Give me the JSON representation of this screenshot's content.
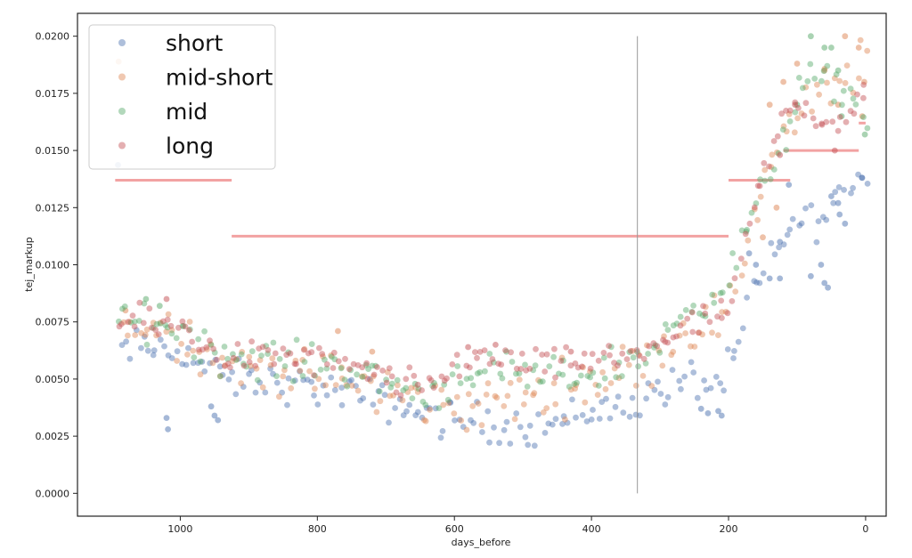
{
  "chart_data": {
    "type": "scatter",
    "xlabel": "days_before",
    "ylabel": "tej_markup",
    "xlim": [
      1150,
      -30
    ],
    "ylim": [
      -0.001,
      0.021
    ],
    "x_inverted": true,
    "xticks": [
      1000,
      800,
      600,
      400,
      200,
      0
    ],
    "yticks": [
      0.0,
      0.0025,
      0.005,
      0.0075,
      0.01,
      0.0125,
      0.015,
      0.0175,
      0.02
    ],
    "ytick_labels": [
      "0.0000",
      "0.0025",
      "0.0050",
      "0.0075",
      "0.0100",
      "0.0125",
      "0.0150",
      "0.0175",
      "0.0200"
    ],
    "legend_position": "upper-left",
    "grid": false,
    "vertical_line": {
      "x": 333,
      "y_from": 0.0,
      "y_to": 0.02,
      "color": "#999999"
    },
    "reference_lines": [
      {
        "x_from": 1095,
        "x_to": 925,
        "y": 0.0137
      },
      {
        "x_from": 925,
        "x_to": 200,
        "y": 0.01125
      },
      {
        "x_from": 200,
        "x_to": 110,
        "y": 0.0137
      },
      {
        "x_from": 120,
        "x_to": 10,
        "y": 0.015
      },
      {
        "x_from": 10,
        "x_to": 0,
        "y": 0.0162
      }
    ],
    "reference_color": "#f2a2a2",
    "series": [
      {
        "name": "short",
        "color": "#4c72b0",
        "curve": [
          [
            1090,
            0.0063
          ],
          [
            1000,
            0.0063
          ],
          [
            940,
            0.005
          ],
          [
            840,
            0.0048
          ],
          [
            760,
            0.0044
          ],
          [
            700,
            0.004
          ],
          [
            620,
            0.0033
          ],
          [
            560,
            0.0031
          ],
          [
            500,
            0.0029
          ],
          [
            460,
            0.003
          ],
          [
            400,
            0.0036
          ],
          [
            340,
            0.0039
          ],
          [
            300,
            0.0045
          ],
          [
            260,
            0.005
          ],
          [
            210,
            0.0047
          ],
          [
            190,
            0.006
          ],
          [
            170,
            0.0085
          ],
          [
            150,
            0.0095
          ],
          [
            130,
            0.0105
          ],
          [
            100,
            0.012
          ],
          [
            60,
            0.012
          ],
          [
            10,
            0.014
          ],
          [
            0,
            0.014
          ]
        ],
        "spread": 0.0006,
        "extra_points": [
          [
            1020,
            0.0033
          ],
          [
            1018,
            0.0028
          ],
          [
            955,
            0.0038
          ],
          [
            950,
            0.0034
          ],
          [
            945,
            0.0032
          ],
          [
            240,
            0.0037
          ],
          [
            230,
            0.0035
          ],
          [
            215,
            0.0036
          ],
          [
            210,
            0.0034
          ],
          [
            170,
            0.0105
          ],
          [
            160,
            0.01
          ],
          [
            140,
            0.0094
          ],
          [
            125,
            0.0094
          ],
          [
            80,
            0.0095
          ],
          [
            65,
            0.01
          ],
          [
            60,
            0.0092
          ],
          [
            55,
            0.009
          ],
          [
            125,
            0.011
          ],
          [
            112,
            0.0135
          ],
          [
            50,
            0.013
          ],
          [
            40,
            0.0127
          ],
          [
            38,
            0.0122
          ],
          [
            30,
            0.0118
          ],
          [
            5,
            0.0138
          ]
        ]
      },
      {
        "name": "mid-short",
        "color": "#dd8452",
        "curve": [
          [
            1090,
            0.0073
          ],
          [
            1000,
            0.0072
          ],
          [
            940,
            0.0057
          ],
          [
            860,
            0.0054
          ],
          [
            760,
            0.005
          ],
          [
            700,
            0.0044
          ],
          [
            640,
            0.004
          ],
          [
            580,
            0.0038
          ],
          [
            520,
            0.0041
          ],
          [
            460,
            0.0045
          ],
          [
            400,
            0.005
          ],
          [
            340,
            0.0055
          ],
          [
            300,
            0.0063
          ],
          [
            260,
            0.0072
          ],
          [
            220,
            0.0077
          ],
          [
            200,
            0.0078
          ],
          [
            185,
            0.0092
          ],
          [
            170,
            0.0115
          ],
          [
            150,
            0.0135
          ],
          [
            130,
            0.0155
          ],
          [
            100,
            0.0165
          ],
          [
            60,
            0.0175
          ],
          [
            20,
            0.0185
          ],
          [
            0,
            0.019
          ]
        ],
        "spread": 0.0008,
        "extra_points": [
          [
            1080,
            0.008
          ],
          [
            770,
            0.0071
          ],
          [
            720,
            0.0062
          ],
          [
            140,
            0.017
          ],
          [
            120,
            0.018
          ],
          [
            100,
            0.0188
          ],
          [
            30,
            0.02
          ],
          [
            10,
            0.0195
          ],
          [
            2,
            0.018
          ],
          [
            60,
            0.0185
          ],
          [
            40,
            0.017
          ],
          [
            5,
            0.0165
          ],
          [
            150,
            0.0112
          ],
          [
            130,
            0.0125
          ]
        ]
      },
      {
        "name": "mid",
        "color": "#55a868",
        "curve": [
          [
            1090,
            0.0076
          ],
          [
            1000,
            0.0073
          ],
          [
            940,
            0.006
          ],
          [
            860,
            0.0058
          ],
          [
            760,
            0.0056
          ],
          [
            700,
            0.0049
          ],
          [
            640,
            0.0043
          ],
          [
            580,
            0.0054
          ],
          [
            520,
            0.0052
          ],
          [
            460,
            0.005
          ],
          [
            400,
            0.0053
          ],
          [
            340,
            0.0058
          ],
          [
            300,
            0.0065
          ],
          [
            260,
            0.008
          ],
          [
            220,
            0.009
          ],
          [
            200,
            0.009
          ],
          [
            180,
            0.011
          ],
          [
            160,
            0.0125
          ],
          [
            130,
            0.0148
          ],
          [
            90,
            0.018
          ],
          [
            50,
            0.0178
          ],
          [
            20,
            0.0175
          ],
          [
            0,
            0.016
          ]
        ],
        "spread": 0.0006,
        "extra_points": [
          [
            1050,
            0.0085
          ],
          [
            1030,
            0.0082
          ],
          [
            80,
            0.02
          ],
          [
            60,
            0.0195
          ],
          [
            50,
            0.0195
          ],
          [
            40,
            0.0185
          ],
          [
            100,
            0.017
          ],
          [
            35,
            0.0165
          ],
          [
            1,
            0.0157
          ]
        ]
      },
      {
        "name": "long",
        "color": "#c44e52",
        "curve": [
          [
            1090,
            0.0075
          ],
          [
            1000,
            0.0073
          ],
          [
            940,
            0.006
          ],
          [
            860,
            0.006
          ],
          [
            800,
            0.0058
          ],
          [
            760,
            0.0055
          ],
          [
            700,
            0.005
          ],
          [
            640,
            0.0045
          ],
          [
            580,
            0.006
          ],
          [
            520,
            0.0058
          ],
          [
            460,
            0.0055
          ],
          [
            400,
            0.0058
          ],
          [
            340,
            0.006
          ],
          [
            300,
            0.0067
          ],
          [
            260,
            0.0072
          ],
          [
            200,
            0.008
          ],
          [
            180,
            0.01
          ],
          [
            150,
            0.014
          ],
          [
            110,
            0.017
          ],
          [
            70,
            0.0165
          ],
          [
            30,
            0.0163
          ],
          [
            0,
            0.0178
          ]
        ],
        "spread": 0.0005,
        "extra_points": [
          [
            1020,
            0.0085
          ],
          [
            580,
            0.0064
          ],
          [
            540,
            0.0065
          ],
          [
            430,
            0.0062
          ],
          [
            125,
            0.0148
          ],
          [
            103,
            0.017
          ],
          [
            45,
            0.015
          ]
        ]
      }
    ]
  }
}
